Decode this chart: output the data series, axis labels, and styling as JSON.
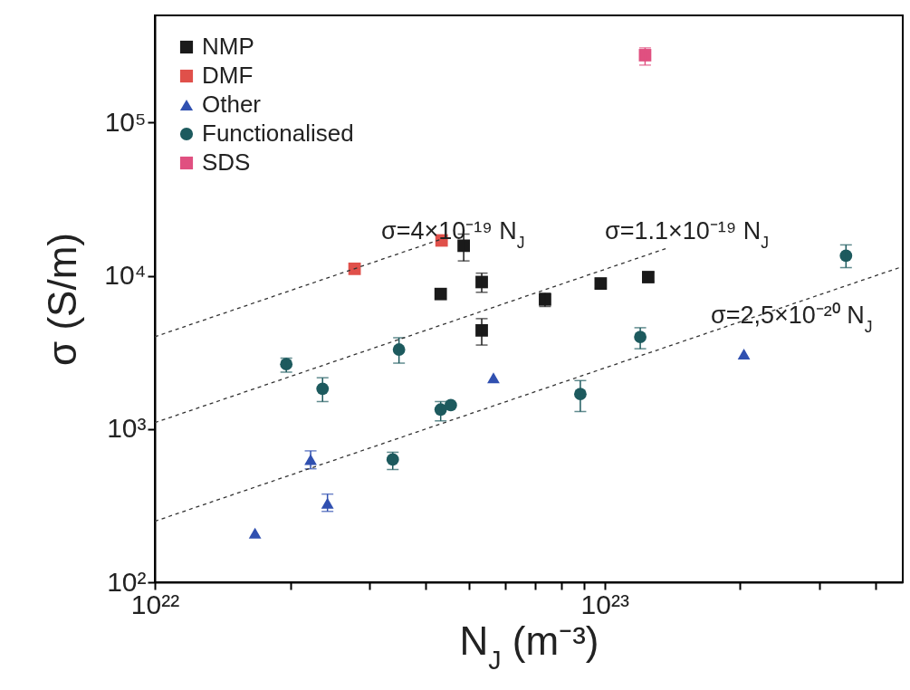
{
  "chart_data": {
    "type": "scatter",
    "xlabel": "N$_{J}$ (m⁻³)",
    "ylabel": "σ (S/m)",
    "log": "xy",
    "legend": "top left",
    "grid": false,
    "xlim": [
      1e+22,
      4.6e+23
    ],
    "ylim": [
      100,
      500000
    ],
    "xticks": [
      {
        "value": 1e+22,
        "label": "10²²"
      },
      {
        "value": 2e+22,
        "label": null
      },
      {
        "value": 3e+22,
        "label": null
      },
      {
        "value": 4e+22,
        "label": null
      },
      {
        "value": 5e+22,
        "label": null
      },
      {
        "value": 6e+22,
        "label": null
      },
      {
        "value": 7e+22,
        "label": null
      },
      {
        "value": 8e+22,
        "label": null
      },
      {
        "value": 9e+22,
        "label": null
      },
      {
        "value": 1e+23,
        "label": "10²³"
      },
      {
        "value": 2e+23,
        "label": null
      },
      {
        "value": 3e+23,
        "label": null
      },
      {
        "value": 4e+23,
        "label": null
      }
    ],
    "yticks": [
      {
        "value": 100,
        "label": "10²"
      },
      {
        "value": 1000,
        "label": "10³"
      },
      {
        "value": 10000,
        "label": "10⁴"
      },
      {
        "value": 100000,
        "label": "10⁵"
      }
    ],
    "series": [
      {
        "name": "NMP",
        "color": "#1a1a1a",
        "marker": "square",
        "x": [
          4.32e+22,
          4.86e+22,
          5.33e+22,
          5.33e+22,
          7.37e+22,
          9.8e+22,
          1.25e+23
        ],
        "values": [
          7600,
          15700,
          9100,
          4400,
          7000,
          8900,
          9800
        ],
        "errors": [
          null,
          [
            12500,
            18700
          ],
          [
            7800,
            10400
          ],
          [
            3530,
            5250
          ],
          [
            6300,
            7700
          ],
          [
            8300,
            9600
          ],
          [
            9200,
            10500
          ]
        ]
      },
      {
        "name": "DMF",
        "color": "#e0504a",
        "marker": "square",
        "x": [
          2.78e+22,
          4.34e+22
        ],
        "values": [
          11100,
          17000
        ]
      },
      {
        "name": "Other",
        "color": "#3050b0",
        "marker": "triangle",
        "x": [
          1.67e+22,
          2.22e+22,
          2.42e+22,
          5.66e+22,
          2.04e+23
        ],
        "values": [
          209,
          632,
          328,
          2160,
          3080
        ],
        "errors": [
          null,
          [
            550,
            720
          ],
          [
            290,
            376
          ],
          null,
          null
        ]
      },
      {
        "name": "Functionalised",
        "color": "#1d5a5e",
        "marker": "circle",
        "x": [
          1.96e+22,
          2.36e+22,
          3.38e+22,
          3.49e+22,
          4.32e+22,
          4.55e+22,
          8.83e+22,
          1.2e+23,
          3.44e+23
        ],
        "values": [
          2650,
          1830,
          632,
          3300,
          1340,
          1430,
          1690,
          3990,
          13500
        ],
        "errors": [
          [
            2350,
            2900
          ],
          [
            1510,
            2160
          ],
          [
            544,
            705
          ],
          [
            2690,
            3940
          ],
          [
            1130,
            1510
          ],
          null,
          [
            1300,
            2070
          ],
          [
            3340,
            4580
          ],
          [
            11300,
            15900
          ]
        ]
      },
      {
        "name": "SDS",
        "color": "#e05080",
        "marker": "square",
        "x": [
          1.23e+23
        ],
        "values": [
          275000
        ],
        "errors": [
          [
            237000,
            307000
          ]
        ]
      },
      {
        "type": "line",
        "color": "#333333",
        "line_style": "dashed",
        "marker": "none",
        "x": [
          1e+22,
          4.4e+22
        ],
        "values": [
          4000,
          17600
        ]
      },
      {
        "type": "line",
        "color": "#333333",
        "line_style": "dashed",
        "marker": "none",
        "x": [
          1e+22,
          1.37e+23
        ],
        "values": [
          1100,
          15070
        ]
      },
      {
        "type": "line",
        "color": "#333333",
        "line_style": "dashed",
        "marker": "none",
        "x": [
          1e+22,
          4.6e+23
        ],
        "values": [
          250,
          11500
        ]
      }
    ],
    "annotations": [
      "σ=4×10⁻¹⁹ N$_{J}$",
      "σ=1.1×10⁻¹⁹ N$_{J}$",
      "σ=2,5×10⁻²⁰ N$_{J}$"
    ]
  }
}
